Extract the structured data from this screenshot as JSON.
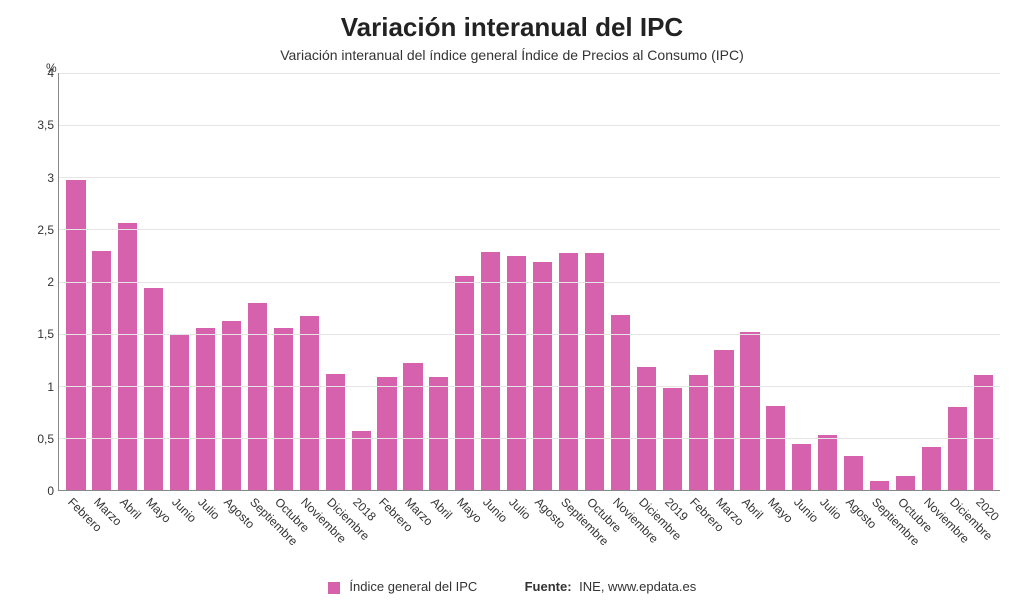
{
  "chart": {
    "type": "bar",
    "title": "Variación interanual del IPC",
    "subtitle": "Variación interanual del índice general Índice de Precios al Consumo (IPC)",
    "title_fontsize": 26,
    "subtitle_fontsize": 14,
    "y_unit": "%",
    "ylim": [
      0,
      4
    ],
    "yticks": [
      0,
      0.5,
      1,
      1.5,
      2,
      2.5,
      3,
      3.5,
      4
    ],
    "ytick_labels": [
      "0",
      "0,5",
      "1",
      "1,5",
      "2",
      "2,5",
      "3",
      "3,5",
      "4"
    ],
    "categories": [
      "Febrero",
      "Marzo",
      "Abril",
      "Mayo",
      "Junio",
      "Julio",
      "Agosto",
      "Septiembre",
      "Octubre",
      "Noviembre",
      "Diciembre",
      "2018",
      "Febrero",
      "Marzo",
      "Abril",
      "Mayo",
      "Junio",
      "Julio",
      "Agosto",
      "Septiembre",
      "Octubre",
      "Noviembre",
      "Diciembre",
      "2019",
      "Febrero",
      "Marzo",
      "Abril",
      "Mayo",
      "Junio",
      "Julio",
      "Agosto",
      "Septiembre",
      "Octubre",
      "Noviembre",
      "Diciembre",
      "2020"
    ],
    "values": [
      2.97,
      2.29,
      2.56,
      1.94,
      1.5,
      1.55,
      1.62,
      1.79,
      1.55,
      1.67,
      1.11,
      0.57,
      1.08,
      1.22,
      1.08,
      2.05,
      2.28,
      2.24,
      2.19,
      2.27,
      2.27,
      1.68,
      1.18,
      0.98,
      1.1,
      1.34,
      1.52,
      0.81,
      0.44,
      0.53,
      0.33,
      0.09,
      0.13,
      0.41,
      0.8,
      1.1
    ],
    "bar_color": "#d662ae",
    "background_color": "#ffffff",
    "grid_color": "#e5e5e5",
    "axis_color": "#888888",
    "bar_width": 0.74,
    "x_label_rotation": 45,
    "x_label_fontsize": 12,
    "y_label_fontsize": 12,
    "legend": {
      "series_label": "Índice general del IPC",
      "source_prefix": "Fuente:",
      "source_text": "INE, www.epdata.es",
      "swatch_color": "#d662ae"
    }
  }
}
